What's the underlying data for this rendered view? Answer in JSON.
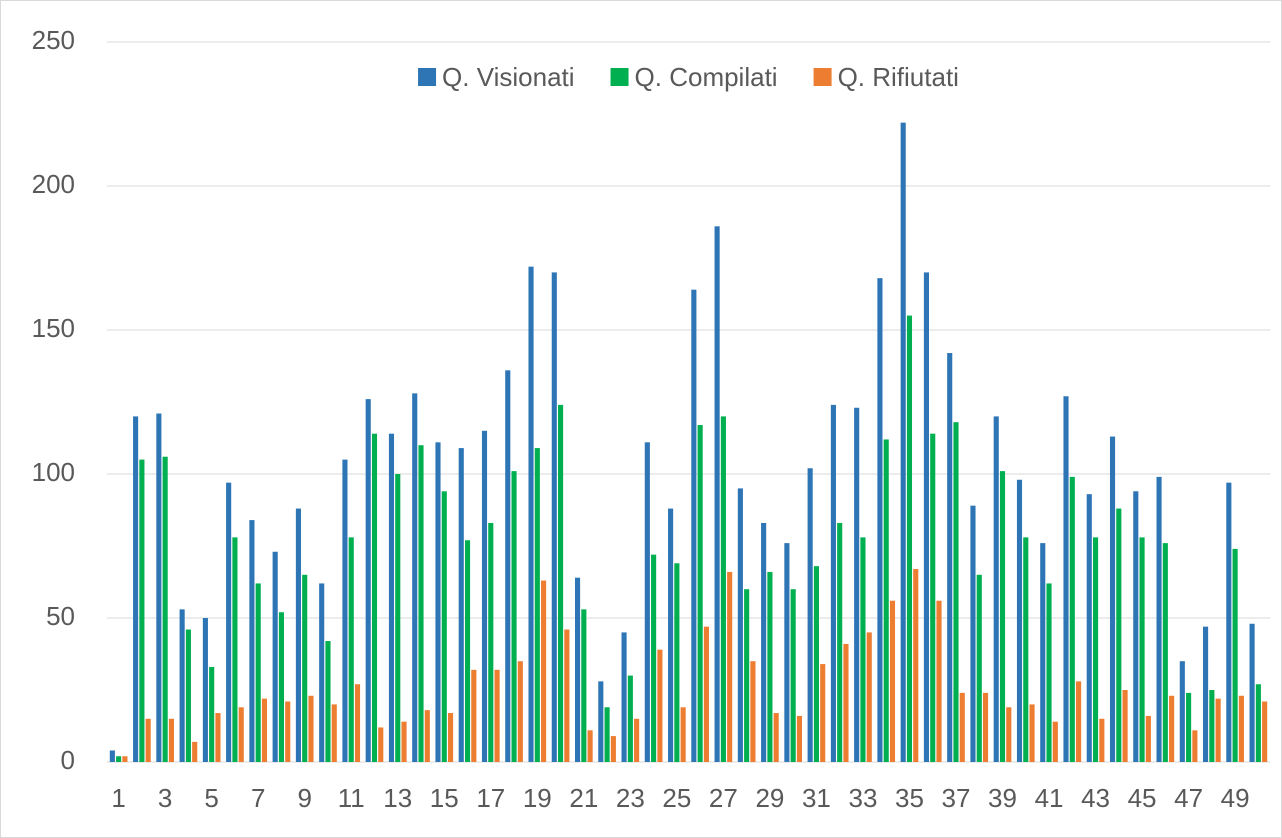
{
  "chart_data": {
    "type": "bar",
    "categories": [
      "1",
      null,
      "3",
      null,
      "5",
      null,
      "7",
      null,
      "9",
      null,
      "11",
      null,
      "13",
      null,
      "15",
      null,
      "17",
      null,
      "19",
      null,
      "21",
      null,
      "23",
      null,
      "25",
      null,
      "27",
      null,
      "29",
      null,
      "31",
      null,
      "33",
      null,
      "35",
      null,
      "37",
      null,
      "39",
      null,
      "41",
      null,
      "43",
      null,
      "45",
      null,
      "47",
      null,
      "49",
      null
    ],
    "series": [
      {
        "name": "Q. Visionati",
        "color": "#2e75b6",
        "values": [
          4,
          120,
          121,
          53,
          50,
          97,
          84,
          73,
          88,
          62,
          105,
          126,
          114,
          128,
          111,
          109,
          115,
          136,
          172,
          170,
          64,
          28,
          45,
          111,
          88,
          164,
          186,
          95,
          83,
          76,
          102,
          124,
          123,
          168,
          222,
          170,
          142,
          89,
          120,
          98,
          76,
          127,
          93,
          113,
          94,
          99,
          35,
          47,
          97,
          48
        ]
      },
      {
        "name": "Q. Compilati",
        "color": "#00b050",
        "values": [
          2,
          105,
          106,
          46,
          33,
          78,
          62,
          52,
          65,
          42,
          78,
          114,
          100,
          110,
          94,
          77,
          83,
          101,
          109,
          124,
          53,
          19,
          30,
          72,
          69,
          117,
          120,
          60,
          66,
          60,
          68,
          83,
          78,
          112,
          155,
          114,
          118,
          65,
          101,
          78,
          62,
          99,
          78,
          88,
          78,
          76,
          24,
          25,
          74,
          27
        ]
      },
      {
        "name": "Q. Rifiutati",
        "color": "#ed7d31",
        "values": [
          2,
          15,
          15,
          7,
          17,
          19,
          22,
          21,
          23,
          20,
          27,
          12,
          14,
          18,
          17,
          32,
          32,
          35,
          63,
          46,
          11,
          9,
          15,
          39,
          19,
          47,
          66,
          35,
          17,
          16,
          34,
          41,
          45,
          56,
          67,
          56,
          24,
          24,
          19,
          20,
          14,
          28,
          15,
          25,
          16,
          23,
          11,
          22,
          23,
          21
        ]
      }
    ],
    "ylim": [
      0,
      250
    ],
    "yticks": [
      0,
      50,
      100,
      150,
      200,
      250
    ],
    "grid": true,
    "legend": "top"
  }
}
